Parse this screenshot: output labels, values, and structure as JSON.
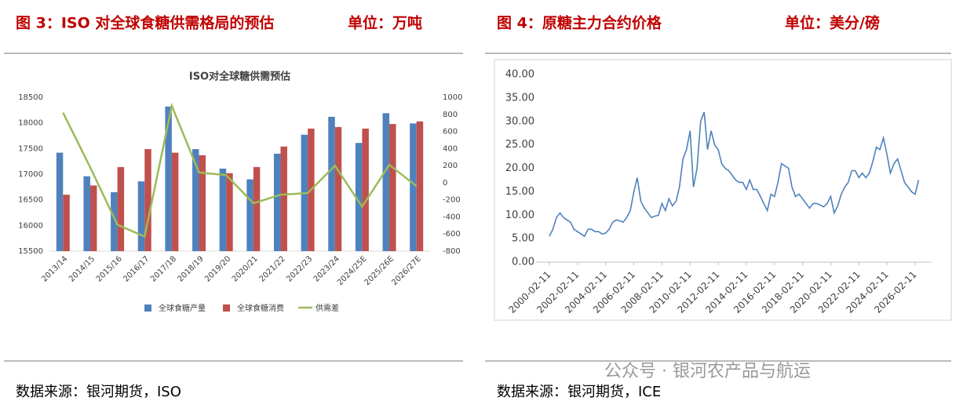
{
  "figures": [
    {
      "caption": "图 3：ISO 对全球食糖供需格局的预估",
      "unit": "单位：万吨",
      "source": "数据来源：银河期货，ISO"
    },
    {
      "caption": "图 4：原糖主力合约价格",
      "unit": "单位：美分/磅",
      "source": "数据来源：银河期货，ICE"
    }
  ],
  "watermark": "公众号 · 银河农产品与航运",
  "chart_data": [
    {
      "type": "bar",
      "title": "ISO对全球糖供需预估",
      "categories": [
        "2013/14",
        "2014/15",
        "2015/16",
        "2016/17",
        "2017/18",
        "2018/19",
        "2019/20",
        "2020/21",
        "2021/22",
        "2022/23",
        "2023/24",
        "2024/25E",
        "2025/26E",
        "2026/27E"
      ],
      "series": [
        {
          "name": "全球食糖产量",
          "color": "#4f81bd",
          "values": [
            17420,
            16960,
            16650,
            16860,
            18320,
            17490,
            17110,
            16900,
            17400,
            17770,
            18120,
            17610,
            18190,
            17990
          ]
        },
        {
          "name": "全球食糖消费",
          "color": "#c0504d",
          "values": [
            16600,
            16780,
            17140,
            17490,
            17420,
            17370,
            17020,
            17140,
            17540,
            17890,
            17920,
            17890,
            17980,
            18030
          ]
        },
        {
          "name": "供需差",
          "color": "#9bbb59",
          "type": "line",
          "axis": "y2",
          "values": [
            820,
            180,
            -490,
            -630,
            900,
            120,
            90,
            -240,
            -140,
            -120,
            200,
            -280,
            210,
            -40
          ]
        }
      ],
      "ylim": [
        15500,
        18500
      ],
      "yticks": [
        15500,
        16000,
        16500,
        17000,
        17500,
        18000,
        18500
      ],
      "y2lim": [
        -800,
        1000
      ],
      "y2ticks": [
        -800,
        -600,
        -400,
        -200,
        0,
        200,
        400,
        600,
        800,
        1000
      ],
      "legend": "bottom",
      "grid": false
    },
    {
      "type": "line",
      "color": "#4f81bd",
      "x": [
        "2000-02-11",
        "2000-05-11",
        "2000-08-11",
        "2000-11-11",
        "2001-02-11",
        "2001-05-11",
        "2001-08-11",
        "2001-11-11",
        "2002-02-11",
        "2002-05-11",
        "2002-08-11",
        "2002-11-11",
        "2003-02-11",
        "2003-05-11",
        "2003-08-11",
        "2003-11-11",
        "2004-02-11",
        "2004-05-11",
        "2004-08-11",
        "2004-11-11",
        "2005-02-11",
        "2005-05-11",
        "2005-08-11",
        "2005-11-11",
        "2006-02-11",
        "2006-05-11",
        "2006-08-11",
        "2006-11-11",
        "2007-02-11",
        "2007-05-11",
        "2007-08-11",
        "2007-11-11",
        "2008-02-11",
        "2008-05-11",
        "2008-08-11",
        "2008-11-11",
        "2009-02-11",
        "2009-05-11",
        "2009-08-11",
        "2009-11-11",
        "2010-02-11",
        "2010-05-11",
        "2010-08-11",
        "2010-11-11",
        "2011-02-11",
        "2011-05-11",
        "2011-08-11",
        "2011-11-11",
        "2012-02-11",
        "2012-05-11",
        "2012-08-11",
        "2012-11-11",
        "2013-02-11",
        "2013-05-11",
        "2013-08-11",
        "2013-11-11",
        "2014-02-11",
        "2014-05-11",
        "2014-08-11",
        "2014-11-11",
        "2015-02-11",
        "2015-05-11",
        "2015-08-11",
        "2015-11-11",
        "2016-02-11",
        "2016-05-11",
        "2016-08-11",
        "2016-11-11",
        "2017-02-11",
        "2017-05-11",
        "2017-08-11",
        "2017-11-11",
        "2018-02-11",
        "2018-05-11",
        "2018-08-11",
        "2018-11-11",
        "2019-02-11",
        "2019-05-11",
        "2019-08-11",
        "2019-11-11",
        "2020-02-11",
        "2020-05-11",
        "2020-08-11",
        "2020-11-11",
        "2021-02-11",
        "2021-05-11",
        "2021-08-11",
        "2021-11-11",
        "2022-02-11",
        "2022-05-11",
        "2022-08-11",
        "2022-11-11",
        "2023-02-11",
        "2023-05-11",
        "2023-08-11",
        "2023-11-11",
        "2024-02-11",
        "2024-05-11",
        "2024-08-11",
        "2024-11-11",
        "2025-02-11",
        "2025-05-11",
        "2025-08-11",
        "2025-11-11",
        "2026-02-11",
        "2026-05-11"
      ],
      "values": [
        5.5,
        7.0,
        9.5,
        10.5,
        9.5,
        9.0,
        8.5,
        7.0,
        6.5,
        6.0,
        5.5,
        7.0,
        7.0,
        6.5,
        6.5,
        6.0,
        6.2,
        7.0,
        8.5,
        9.0,
        8.8,
        8.5,
        9.5,
        11.0,
        15.0,
        18.0,
        13.0,
        11.5,
        10.5,
        9.5,
        9.8,
        10.0,
        12.5,
        11.0,
        13.5,
        12.0,
        13.0,
        16.0,
        22.0,
        24.0,
        28.0,
        16.0,
        20.0,
        30.0,
        32.0,
        24.0,
        28.0,
        25.0,
        24.0,
        21.0,
        20.0,
        19.5,
        18.5,
        17.5,
        17.0,
        17.0,
        15.5,
        17.5,
        15.5,
        15.5,
        14.0,
        12.5,
        11.0,
        14.5,
        14.0,
        17.0,
        21.0,
        20.5,
        20.0,
        16.0,
        14.0,
        14.5,
        13.5,
        12.5,
        11.5,
        12.5,
        12.5,
        12.2,
        11.8,
        12.5,
        14.0,
        10.5,
        12.0,
        14.5,
        16.0,
        17.0,
        19.5,
        19.5,
        18.0,
        19.0,
        18.0,
        19.0,
        21.5,
        24.5,
        24.0,
        26.5,
        23.0,
        19.0,
        21.0,
        22.0,
        19.5,
        17.0,
        16.0,
        15.0,
        14.5,
        17.5
      ],
      "xlim": [
        "1999-03-01",
        "2027-04-15"
      ],
      "xticks": [
        "2000-02-11",
        "2002-02-11",
        "2004-02-11",
        "2006-02-11",
        "2008-02-11",
        "2010-02-11",
        "2012-02-11",
        "2014-02-11",
        "2016-02-11",
        "2018-02-11",
        "2020-02-11",
        "2022-02-11",
        "2024-02-11",
        "2026-02-11"
      ],
      "ylim": [
        0,
        40
      ],
      "yticks": [
        {
          "value": 0,
          "label": "0.00"
        },
        {
          "value": 5,
          "label": "5.00"
        },
        {
          "value": 10,
          "label": "10.00"
        },
        {
          "value": 15,
          "label": "15.00"
        },
        {
          "value": 20,
          "label": "20.00"
        },
        {
          "value": 25,
          "label": "25.00"
        },
        {
          "value": 30,
          "label": "30.00"
        },
        {
          "value": 35,
          "label": "35.00"
        },
        {
          "value": 40,
          "label": "40.00"
        }
      ],
      "grid": false
    }
  ]
}
